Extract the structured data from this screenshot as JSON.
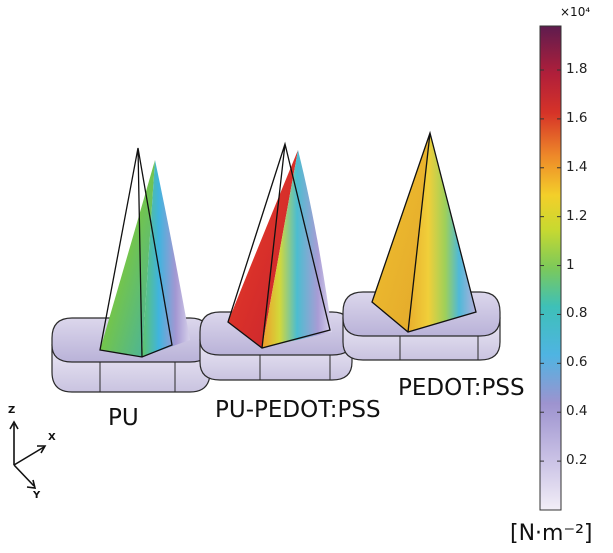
{
  "samples": [
    {
      "label": "PU"
    },
    {
      "label": "PU-PEDOT:PSS"
    },
    {
      "label": "PEDOT:PSS"
    }
  ],
  "colorbar": {
    "exponent": "×10⁴",
    "ticks": [
      "1.8",
      "1.6",
      "1.4",
      "1.2",
      "1",
      "0.8",
      "0.6",
      "0.4",
      "0.2"
    ],
    "tick_values": [
      1.8,
      1.6,
      1.4,
      1.2,
      1.0,
      0.8,
      0.6,
      0.4,
      0.2
    ],
    "range": [
      0,
      1.98
    ],
    "unit": "[N·m⁻²]",
    "colors": [
      "#efeaf4",
      "#9d93cf",
      "#3fb6df",
      "#63c57f",
      "#c2d832",
      "#f1c32e",
      "#e46b2a",
      "#cf2a2a",
      "#6c1e4c"
    ]
  },
  "axes": {
    "z": "Z",
    "x": "X",
    "y": "Y"
  }
}
